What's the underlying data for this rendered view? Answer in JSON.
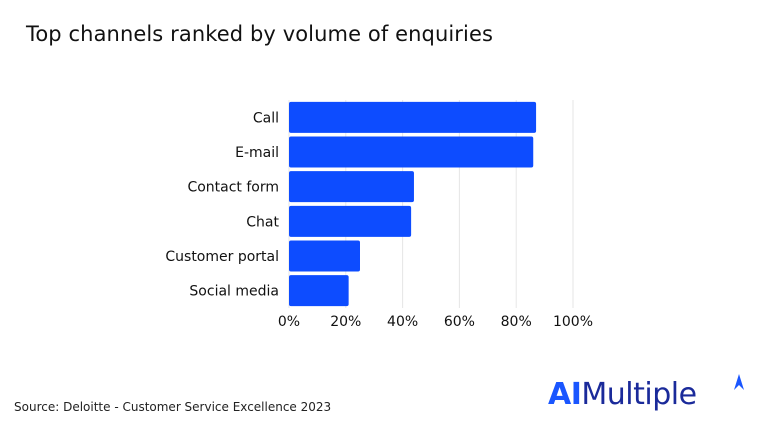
{
  "chart_data": {
    "type": "bar",
    "orientation": "horizontal",
    "title": "Top channels ranked by volume of enquiries",
    "categories": [
      "Call",
      "E-mail",
      "Contact form",
      "Chat",
      "Customer portal",
      "Social media"
    ],
    "values": [
      87,
      86,
      44,
      43,
      25,
      21
    ],
    "xlim": [
      0,
      100
    ],
    "xticks": [
      "0%",
      "20%",
      "40%",
      "60%",
      "80%",
      "100%"
    ],
    "grid": true,
    "bar_color": "#0d4cff"
  },
  "source": "Source: Deloitte - Customer Service Excellence 2023",
  "logo": {
    "prefix": "AI",
    "suffix": "Multiple"
  }
}
